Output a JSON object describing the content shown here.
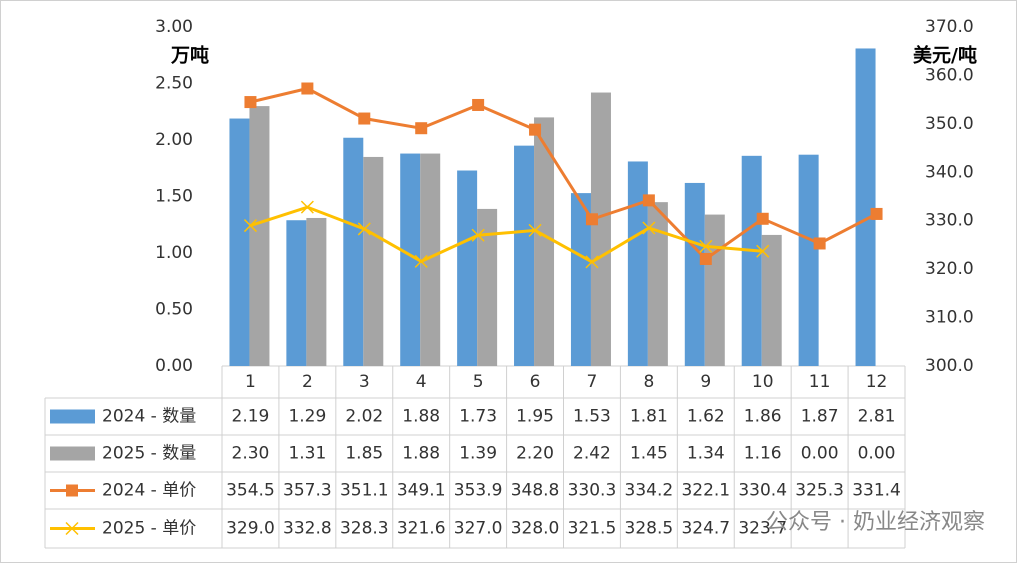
{
  "chart_data": {
    "type": "combo",
    "y_label": "万吨",
    "y2_label": "美元/吨",
    "watermark": "公众号 · 奶业经济观察",
    "categories": [
      "1",
      "2",
      "3",
      "4",
      "5",
      "6",
      "7",
      "8",
      "9",
      "10",
      "11",
      "12"
    ],
    "ylim": [
      0,
      3
    ],
    "yticks": [
      {
        "value": 0,
        "label": "0.00"
      },
      {
        "value": 0.5,
        "label": "0.50"
      },
      {
        "value": 1,
        "label": "1.00"
      },
      {
        "value": 1.5,
        "label": "1.50"
      },
      {
        "value": 2,
        "label": "2.00"
      },
      {
        "value": 2.5,
        "label": "2.50"
      },
      {
        "value": 3,
        "label": "3.00"
      }
    ],
    "y2lim": [
      300,
      370
    ],
    "y2ticks": [
      {
        "value": 300,
        "label": "300.0"
      },
      {
        "value": 310,
        "label": "310.0"
      },
      {
        "value": 320,
        "label": "320.0"
      },
      {
        "value": 330,
        "label": "330.0"
      },
      {
        "value": 340,
        "label": "340.0"
      },
      {
        "value": 350,
        "label": "350.0"
      },
      {
        "value": 360,
        "label": "360.0"
      },
      {
        "value": 370,
        "label": "370.0"
      }
    ],
    "grid": false,
    "series": [
      {
        "name": "2024 - 数量",
        "type": "bar",
        "color": "#5b9bd5",
        "values": [
          2.19,
          1.29,
          2.02,
          1.88,
          1.73,
          1.95,
          1.53,
          1.81,
          1.62,
          1.86,
          1.87,
          2.81
        ],
        "value_labels": [
          "2.19",
          "1.29",
          "2.02",
          "1.88",
          "1.73",
          "1.95",
          "1.53",
          "1.81",
          "1.62",
          "1.86",
          "1.87",
          "2.81"
        ]
      },
      {
        "name": "2025 - 数量",
        "type": "bar",
        "color": "#a5a5a5",
        "values": [
          2.3,
          1.31,
          1.85,
          1.88,
          1.39,
          2.2,
          2.42,
          1.45,
          1.34,
          1.16,
          0,
          0
        ],
        "value_labels": [
          "2.30",
          "1.31",
          "1.85",
          "1.88",
          "1.39",
          "2.20",
          "2.42",
          "1.45",
          "1.34",
          "1.16",
          "0.00",
          "0.00"
        ]
      },
      {
        "name": "2024 - 单价",
        "type": "line",
        "axis": "y2",
        "marker": "square",
        "color": "#ed7d31",
        "values": [
          354.5,
          357.3,
          351.1,
          349.1,
          353.9,
          348.8,
          330.3,
          334.2,
          322.1,
          330.4,
          325.3,
          331.4
        ],
        "value_labels": [
          "354.5",
          "357.3",
          "351.1",
          "349.1",
          "353.9",
          "348.8",
          "330.3",
          "334.2",
          "322.1",
          "330.4",
          "325.3",
          "331.4"
        ]
      },
      {
        "name": "2025 - 单价",
        "type": "line",
        "axis": "y2",
        "marker": "x",
        "color": "#ffc000",
        "values": [
          329,
          332.8,
          328.3,
          321.6,
          327,
          328,
          321.5,
          328.5,
          324.7,
          323.7,
          null,
          null
        ],
        "value_labels": [
          "329.0",
          "332.8",
          "328.3",
          "321.6",
          "327.0",
          "328.0",
          "321.5",
          "328.5",
          "324.7",
          "323.7",
          null,
          null
        ]
      }
    ]
  }
}
